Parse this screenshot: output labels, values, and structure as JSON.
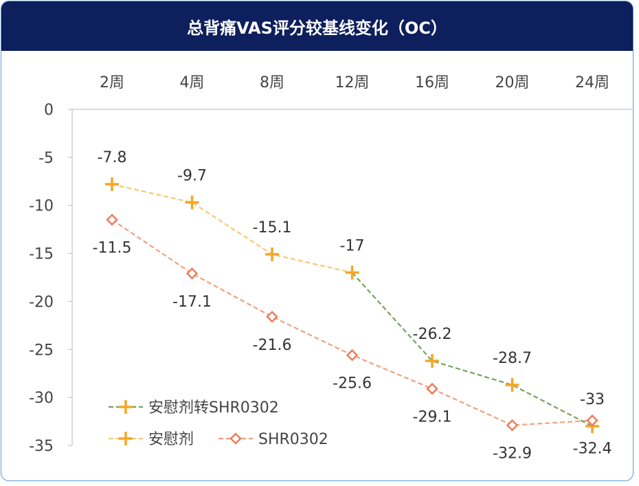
{
  "title": "总背痛VAS评分较基线变化（OC）",
  "chart_data": {
    "type": "line",
    "title": "总背痛VAS评分较基线变化（OC）",
    "categories": [
      "2周",
      "4周",
      "8周",
      "12周",
      "16周",
      "20周",
      "24周"
    ],
    "yticks": [
      "0",
      "-5",
      "-10",
      "-15",
      "-20",
      "-25",
      "-30",
      "-35"
    ],
    "ylim": [
      -35,
      0
    ],
    "x_axis_position": "top",
    "grid": false,
    "legend_position": "bottom-left",
    "series": [
      {
        "name": "安慰剂",
        "color": "#f5a623",
        "marker": "plus",
        "values": [
          -7.8,
          -9.7,
          -15.1,
          -17,
          null,
          null,
          null
        ],
        "labels": [
          "-7.8",
          "-9.7",
          "-15.1",
          "-17",
          "",
          "",
          ""
        ]
      },
      {
        "name": "安慰剂转SHR0302",
        "color": "#7aa05a",
        "marker": "plus",
        "values": [
          null,
          null,
          null,
          -17,
          -26.2,
          -28.7,
          -33
        ],
        "labels": [
          "",
          "",
          "",
          "",
          "-26.2",
          "-28.7",
          "-33"
        ]
      },
      {
        "name": "SHR0302",
        "color": "#ee7c5a",
        "marker": "diamond",
        "values": [
          -11.5,
          -17.1,
          -21.6,
          -25.6,
          -29.1,
          -32.9,
          -32.4
        ],
        "labels": [
          "-11.5",
          "-17.1",
          "-21.6",
          "-25.6",
          "-29.1",
          "-32.9",
          "-32.4"
        ]
      }
    ]
  }
}
